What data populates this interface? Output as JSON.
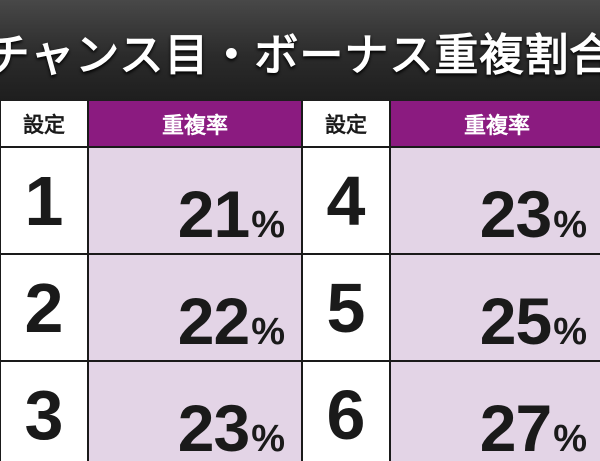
{
  "title": "チャンス目・ボーナス重複割合",
  "headers": {
    "setting_label": "設定",
    "rate_label": "重複率"
  },
  "unit": "%",
  "left_rows": [
    {
      "setting": "1",
      "rate": "21"
    },
    {
      "setting": "2",
      "rate": "22"
    },
    {
      "setting": "3",
      "rate": "23"
    }
  ],
  "right_rows": [
    {
      "setting": "4",
      "rate": "23"
    },
    {
      "setting": "5",
      "rate": "25"
    },
    {
      "setting": "6",
      "rate": "27"
    }
  ],
  "chart_data": {
    "type": "table",
    "columns": [
      "設定",
      "重複率"
    ],
    "rows": [
      [
        "1",
        "21%"
      ],
      [
        "2",
        "22%"
      ],
      [
        "3",
        "23%"
      ],
      [
        "4",
        "23%"
      ],
      [
        "5",
        "25%"
      ],
      [
        "6",
        "27%"
      ]
    ]
  },
  "colors": {
    "header_accent": "#8b1b80",
    "cell_fill": "#e3d4e6",
    "title_bar": "#2b2b2b"
  }
}
